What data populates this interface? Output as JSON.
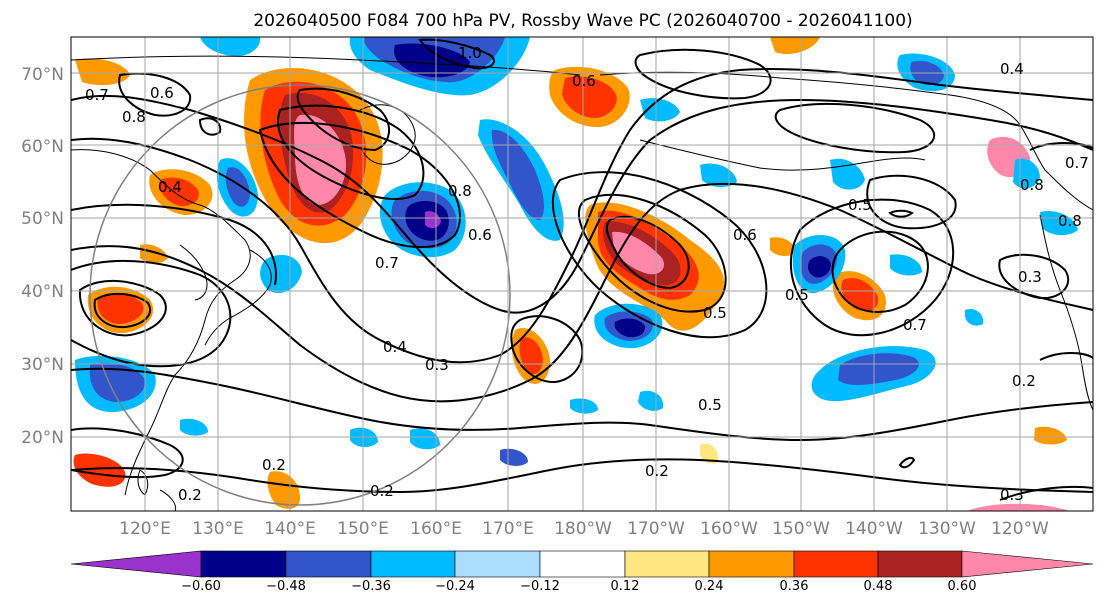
{
  "title": "2026040500 F084 700 hPa PV, Rossby Wave PC (2026040700 - 2026041100)",
  "lat_labels": [
    "70°N",
    "60°N",
    "50°N",
    "40°N",
    "30°N",
    "20°N"
  ],
  "lon_labels": [
    "120°E",
    "130°E",
    "140°E",
    "150°E",
    "160°E",
    "170°E",
    "180°W",
    "170°W",
    "160°W",
    "150°W",
    "140°W",
    "130°W",
    "120°W"
  ],
  "colorbar": {
    "ticks": [
      "−0.60",
      "−0.48",
      "−0.36",
      "−0.24",
      "−0.12",
      "0.12",
      "0.24",
      "0.36",
      "0.48",
      "0.60"
    ],
    "colors": [
      "#9933cc",
      "#000088",
      "#3355cc",
      "#00bbff",
      "#aaddff",
      "#ffffff",
      "#ffe680",
      "#ff9900",
      "#ff3300",
      "#aa2222",
      "#ff88aa"
    ]
  },
  "contour_labels": [
    {
      "text": "1.0"
    },
    {
      "text": "0.7"
    },
    {
      "text": "0.6"
    },
    {
      "text": "0.8"
    },
    {
      "text": "0.4"
    },
    {
      "text": "0.8"
    },
    {
      "text": "0.6"
    },
    {
      "text": "0.7"
    },
    {
      "text": "0.4"
    },
    {
      "text": "0.3"
    },
    {
      "text": "0.2"
    },
    {
      "text": "0.2"
    },
    {
      "text": "0.2"
    },
    {
      "text": "0.6"
    },
    {
      "text": "0.5"
    },
    {
      "text": "0.5"
    },
    {
      "text": "0.6"
    },
    {
      "text": "0.5"
    },
    {
      "text": "0.7"
    },
    {
      "text": "0.3"
    },
    {
      "text": "0.2"
    },
    {
      "text": "0.4"
    },
    {
      "text": "0.8"
    },
    {
      "text": "0.7"
    },
    {
      "text": "0.8"
    },
    {
      "text": "0.3"
    },
    {
      "text": "0.5"
    },
    {
      "text": "0.2"
    }
  ]
}
